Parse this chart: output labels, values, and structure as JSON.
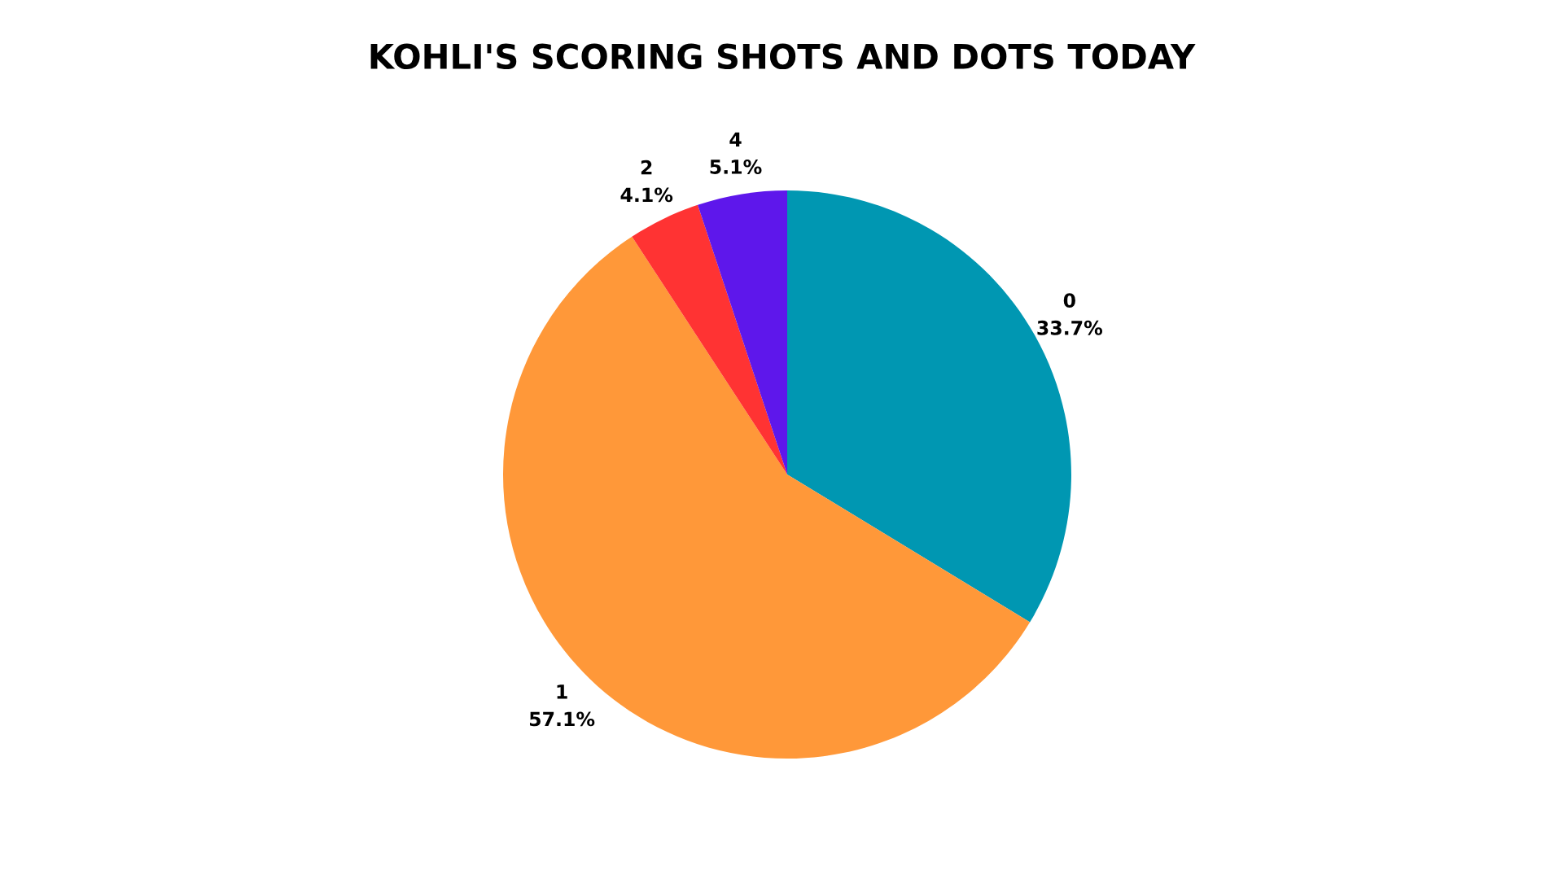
{
  "chart_data": {
    "type": "pie",
    "title": "KOHLI'S SCORING SHOTS AND DOTS TODAY",
    "categories": [
      "0",
      "1",
      "2",
      "4"
    ],
    "values": [
      33.7,
      57.1,
      4.1,
      5.1
    ],
    "value_labels": [
      "33.7%",
      "57.1%",
      "4.1%",
      "5.1%"
    ],
    "colors": [
      "#0097b2",
      "#ff9839",
      "#ff3333",
      "#5e17eb"
    ]
  }
}
